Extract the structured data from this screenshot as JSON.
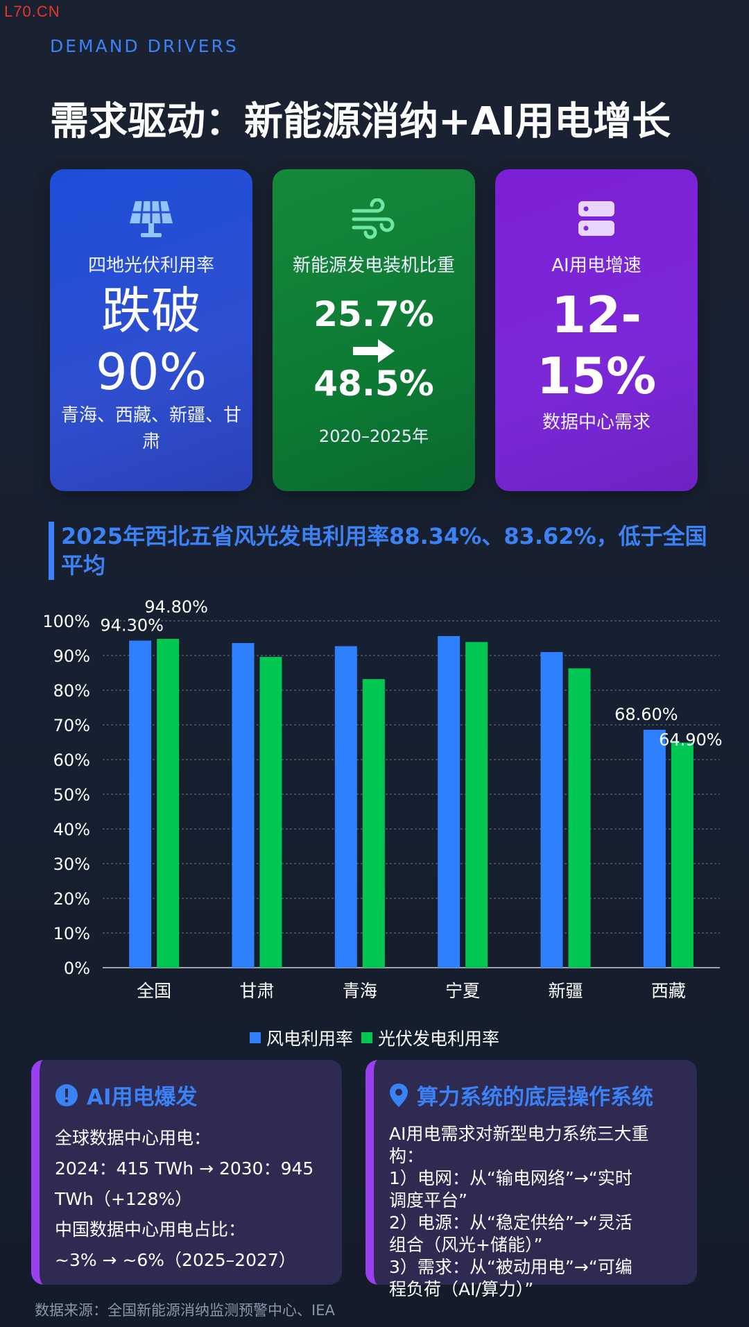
{
  "watermark": "L70.CN",
  "eyebrow": "DEMAND DRIVERS",
  "title": "需求驱动：新能源消纳+AI用电增长",
  "cards": {
    "pv": {
      "icon": "solar-panel-icon",
      "label": "四地光伏利用率",
      "big1": "跌破",
      "big2": "90%",
      "sub": "青海、西藏、新疆、甘肃"
    },
    "share": {
      "icon": "wind-icon",
      "label": "新能源发电装机比重",
      "from": "25.7%",
      "to": "48.5%",
      "period": "2020–2025年"
    },
    "ai": {
      "icon": "server-icon",
      "label": "AI用电增速",
      "big1": "12-",
      "big2": "15%",
      "sub": "数据中心需求"
    }
  },
  "section_title": "2025年西北五省风光发电利用率88.34%、83.62%，低于全国平均",
  "chart_data": {
    "type": "bar",
    "categories": [
      "全国",
      "甘肃",
      "青海",
      "宁夏",
      "新疆",
      "西藏"
    ],
    "series": [
      {
        "name": "风电利用率",
        "color": "#2f80ff",
        "values": [
          94.3,
          93.6,
          92.7,
          95.6,
          91.0,
          68.6
        ]
      },
      {
        "name": "光伏发电利用率",
        "color": "#00c853",
        "values": [
          94.8,
          89.6,
          83.2,
          93.9,
          86.3,
          64.9
        ]
      }
    ],
    "data_labels": [
      {
        "category": "全国",
        "series": "风电利用率",
        "text": "94.30%"
      },
      {
        "category": "全国",
        "series": "光伏发电利用率",
        "text": "94.80%"
      },
      {
        "category": "西藏",
        "series": "风电利用率",
        "text": "68.60%"
      },
      {
        "category": "西藏",
        "series": "光伏发电利用率",
        "text": "64.90%"
      }
    ],
    "yticks": [
      "0%",
      "10%",
      "20%",
      "30%",
      "40%",
      "50%",
      "60%",
      "70%",
      "80%",
      "90%",
      "100%"
    ],
    "ylim": [
      0,
      100
    ],
    "grid": true,
    "legend": "bottom"
  },
  "panels": {
    "left": {
      "icon": "alert-icon",
      "title": "AI用电爆发",
      "lines": [
        "全球数据中心用电：",
        "2024：415 TWh → 2030：945",
        "TWh（+128%）",
        "中国数据中心用电占比：",
        "~3% → ~6%（2025–2027）"
      ]
    },
    "right": {
      "icon": "location-pin-icon",
      "title": "算力系统的底层操作系统",
      "lines": [
        "AI用电需求对新型电力系统三大重构：",
        "1）电网：从“输电网络”→“实时",
        "调度平台”",
        "2）电源：从“稳定供给”→“灵活",
        "组合（风光+储能）”",
        "3）需求：从“被动用电”→“可编",
        "程负荷（AI/算力）”"
      ]
    }
  },
  "footer": "数据来源：全国新能源消纳监测预警中心、IEA"
}
